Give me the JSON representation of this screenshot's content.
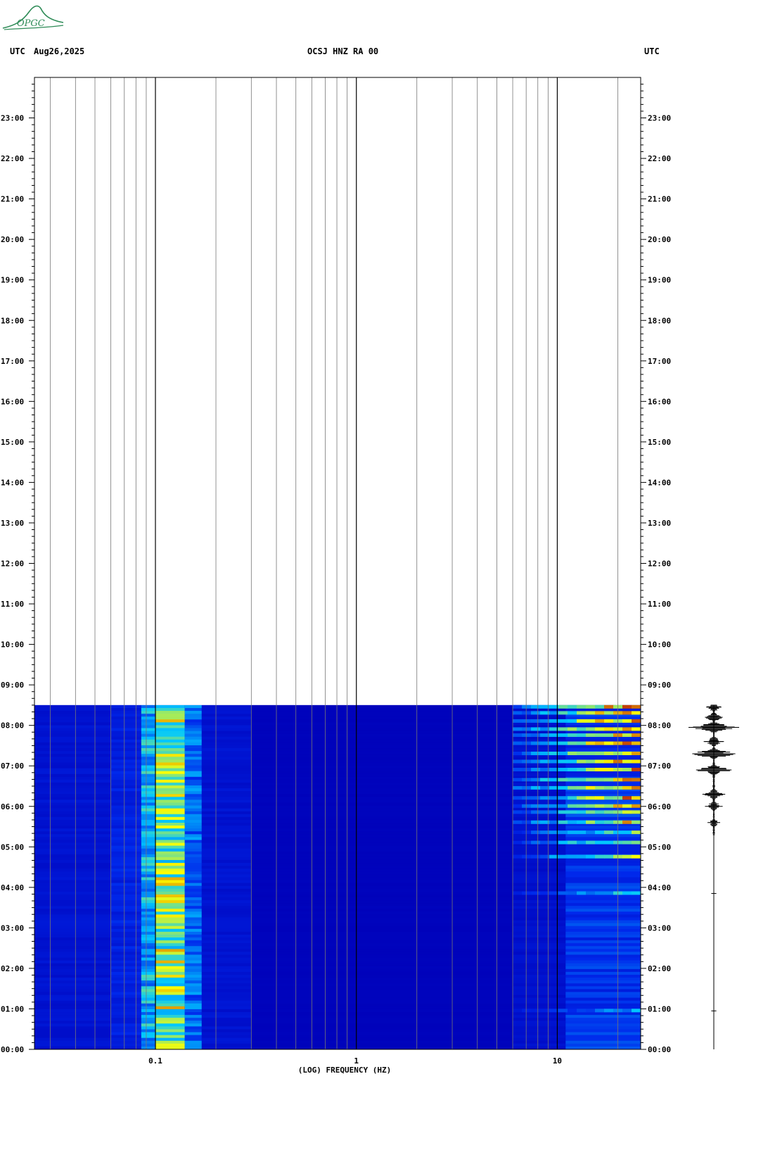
{
  "logo": {
    "text": "OPGC",
    "color": "#2e8b57"
  },
  "header": {
    "left_tz": "UTC",
    "date": "Aug26,2025",
    "station": "OCSJ HNZ RA 00",
    "right_tz": "UTC"
  },
  "chart_data": {
    "type": "heatmap",
    "title": "OCSJ HNZ RA 00",
    "xlabel": "(LOG) FREQUENCY (HZ)",
    "ylabel": "",
    "x_scale": "log",
    "xlim": [
      0.025,
      26
    ],
    "x_ticks": [
      {
        "value": 0.1,
        "label": "0.1"
      },
      {
        "value": 1,
        "label": "1"
      },
      {
        "value": 10,
        "label": "10"
      }
    ],
    "ylim_hours": [
      0,
      24
    ],
    "y_ticks": [
      "00:00",
      "01:00",
      "02:00",
      "03:00",
      "04:00",
      "05:00",
      "06:00",
      "07:00",
      "08:00",
      "09:00",
      "10:00",
      "11:00",
      "12:00",
      "13:00",
      "14:00",
      "15:00",
      "16:00",
      "17:00",
      "18:00",
      "19:00",
      "20:00",
      "21:00",
      "22:00",
      "23:00"
    ],
    "data_end_hour": 8.5,
    "colors": {
      "background": "#0000b8",
      "low": "#0010d8",
      "mid": "#00c8ff",
      "high": "#ffff00",
      "peak": "#b00000"
    },
    "bands": [
      {
        "f_start": 0.025,
        "f_end": 0.06,
        "level": 0.12
      },
      {
        "f_start": 0.06,
        "f_end": 0.085,
        "level": 0.2
      },
      {
        "f_start": 0.085,
        "f_end": 0.1,
        "level": 0.45
      },
      {
        "f_start": 0.1,
        "f_end": 0.14,
        "level": 0.65
      },
      {
        "f_start": 0.14,
        "f_end": 0.17,
        "level": 0.35
      },
      {
        "f_start": 0.17,
        "f_end": 0.3,
        "level": 0.12
      },
      {
        "f_start": 0.3,
        "f_end": 6,
        "level": 0.02
      },
      {
        "f_start": 6,
        "f_end": 11,
        "level": 0.1
      },
      {
        "f_start": 11,
        "f_end": 26,
        "level": 0.25
      }
    ],
    "events": [
      {
        "hour": 0.95,
        "level": 0.5
      },
      {
        "hour": 3.85,
        "level": 0.6
      },
      {
        "hour": 4.75,
        "level": 0.8
      },
      {
        "hour": 5.1,
        "level": 0.8
      },
      {
        "hour": 5.35,
        "level": 0.7
      },
      {
        "hour": 5.6,
        "level": 0.9
      },
      {
        "hour": 5.85,
        "level": 0.85
      },
      {
        "hour": 6.0,
        "level": 0.9
      },
      {
        "hour": 6.2,
        "level": 0.95
      },
      {
        "hour": 6.45,
        "level": 1.0
      },
      {
        "hour": 6.65,
        "level": 1.0
      },
      {
        "hour": 6.9,
        "level": 0.9
      },
      {
        "hour": 7.1,
        "level": 1.0
      },
      {
        "hour": 7.3,
        "level": 0.95
      },
      {
        "hour": 7.55,
        "level": 1.0
      },
      {
        "hour": 7.75,
        "level": 0.95
      },
      {
        "hour": 7.9,
        "level": 1.0
      },
      {
        "hour": 8.1,
        "level": 1.0
      },
      {
        "hour": 8.3,
        "level": 1.0
      },
      {
        "hour": 8.45,
        "level": 1.0
      }
    ],
    "seismogram": {
      "bursts": [
        {
          "hour": 0.95,
          "amp": 0.1
        },
        {
          "hour": 3.85,
          "amp": 0.1
        },
        {
          "hour": 5.6,
          "amp": 0.25
        },
        {
          "hour": 6.0,
          "amp": 0.35
        },
        {
          "hour": 6.3,
          "amp": 0.45
        },
        {
          "hour": 6.9,
          "amp": 0.7
        },
        {
          "hour": 7.3,
          "amp": 0.85
        },
        {
          "hour": 7.6,
          "amp": 0.4
        },
        {
          "hour": 7.95,
          "amp": 1.0
        },
        {
          "hour": 8.2,
          "amp": 0.35
        },
        {
          "hour": 8.45,
          "amp": 0.3
        }
      ]
    }
  }
}
